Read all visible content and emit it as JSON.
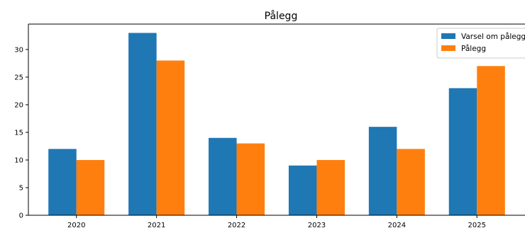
{
  "chart_data": {
    "type": "bar",
    "title": "Pålegg",
    "xlabel": "",
    "ylabel": "",
    "categories": [
      "2020",
      "2021",
      "2022",
      "2023",
      "2024",
      "2025"
    ],
    "series": [
      {
        "name": "Varsel om pålegg",
        "color": "#1f77b4",
        "values": [
          12,
          33,
          14,
          9,
          16,
          23
        ]
      },
      {
        "name": "Pålegg",
        "color": "#ff7f0e",
        "values": [
          10,
          28,
          13,
          10,
          12,
          27
        ]
      }
    ],
    "ylim": [
      0,
      34.6
    ],
    "yticks": [
      0,
      5,
      10,
      15,
      20,
      25,
      30
    ],
    "grid": false,
    "legend": "top-right"
  }
}
